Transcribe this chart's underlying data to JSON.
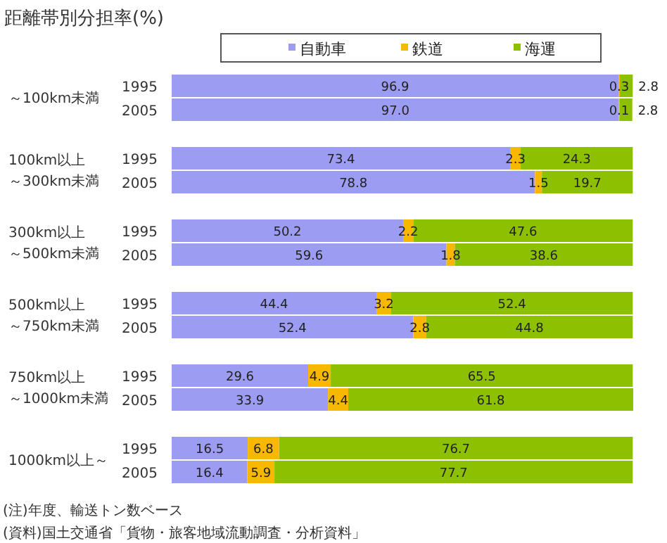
{
  "chart_data": {
    "type": "bar",
    "orientation": "horizontal",
    "stacked": true,
    "legend": "top",
    "title": "距離帯別分担率(%)",
    "categories": [
      "1995",
      "2005",
      "1995",
      "2005",
      "1995",
      "2005",
      "1995",
      "2005",
      "1995",
      "2005",
      "1995",
      "2005"
    ],
    "series": [
      {
        "name": "自動車",
        "color": "#9c9cf2",
        "values": [
          96.9,
          97.0,
          73.4,
          78.8,
          50.2,
          59.6,
          44.4,
          52.4,
          29.6,
          33.9,
          16.5,
          16.4
        ],
        "value_labels": [
          "96.9",
          "97.0",
          "73.4",
          "78.8",
          "50.2",
          "59.6",
          "44.4",
          "52.4",
          "29.6",
          "33.9",
          "16.5",
          "16.4"
        ]
      },
      {
        "name": "鉄道",
        "color": "#f8b800",
        "values": [
          0.3,
          0.1,
          2.3,
          1.5,
          2.2,
          1.8,
          3.2,
          2.8,
          4.9,
          4.4,
          6.8,
          5.9
        ],
        "value_labels": [
          "0.3",
          "0.1",
          "2.3",
          "1.5",
          "2.2",
          "1.8",
          "3.2",
          "2.8",
          "4.9",
          "4.4",
          "6.8",
          "5.9"
        ]
      },
      {
        "name": "海運",
        "color": "#8cc000",
        "values": [
          2.8,
          2.8,
          24.3,
          19.7,
          47.6,
          38.6,
          52.4,
          44.8,
          65.5,
          61.8,
          76.7,
          77.7
        ],
        "value_labels": [
          "2.8",
          "2.8",
          "24.3",
          "19.7",
          "47.6",
          "38.6",
          "52.4",
          "44.8",
          "65.5",
          "61.8",
          "76.7",
          "77.7"
        ]
      }
    ],
    "annotations": [
      "～100km未満",
      "100km以上～300km未満",
      "300km以上～500km未満",
      "500km以上～750km未満",
      "750km以上～1000km未満",
      "1000km以上～",
      "(注)年度、輸送トン数ベース",
      "(資料)国土交通省「貨物・旅客地域流動調査・分析資料」"
    ]
  }
}
